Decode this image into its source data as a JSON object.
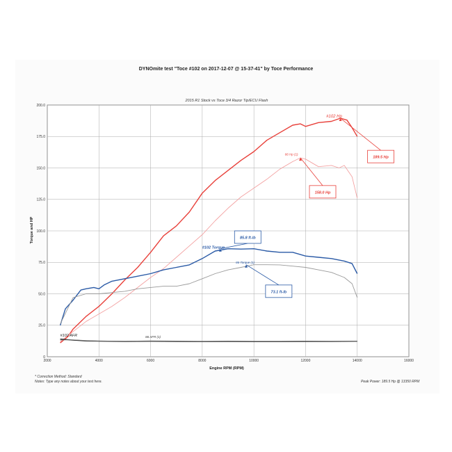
{
  "header": {
    "title": "DYNOmite test \"Toce  #102 on 2017-12-07 @ 15-37-41\" by Toce Performance"
  },
  "footer": {
    "correction": "* Correction Method: Standard",
    "notes": "Notes: Type any notes about your test here.",
    "peak_power": "Peak Power: 189.5 Hp @ 13350 RPM"
  },
  "chart_data": {
    "type": "line",
    "title": "2015 R1 Stock vs Toce 3/4 Razor Tip/ECU Flash",
    "xlabel": "Engine RPM (RPM)",
    "ylabel": "Torque and HP",
    "xlim": [
      2000,
      16000
    ],
    "ylim": [
      0,
      200
    ],
    "xticks": [
      "2000",
      "4000",
      "6000",
      "8000",
      "10000",
      "12000",
      "14000",
      "16000"
    ],
    "yticks": [
      "0",
      "25.0",
      "50.0",
      "75.0",
      "100.0",
      "125.0",
      "150.0",
      "175.0",
      "200.0"
    ],
    "grid": true,
    "series": [
      {
        "name": "#102 Hp",
        "color": "#e8403a",
        "width": 1.4,
        "x": [
          2500,
          2800,
          3000,
          3500,
          4000,
          4500,
          5000,
          5500,
          6000,
          6500,
          7000,
          7500,
          8000,
          8500,
          9000,
          9500,
          10000,
          10500,
          11000,
          11500,
          11800,
          12000,
          12500,
          13000,
          13350,
          13600,
          13800,
          14000
        ],
        "y": [
          11,
          16,
          22,
          32,
          40,
          50,
          61,
          71,
          83,
          96,
          104,
          115,
          130,
          140,
          148,
          156,
          163,
          172,
          178,
          184,
          185,
          183,
          186,
          187,
          189.5,
          188,
          182,
          175
        ]
      },
      {
        "name": "86 Hp (1)",
        "color": "#f3a2a2",
        "width": 0.9,
        "x": [
          2500,
          3000,
          3500,
          4000,
          4500,
          5000,
          5500,
          6000,
          6500,
          7000,
          7500,
          8000,
          8500,
          9000,
          9500,
          10000,
          10500,
          11000,
          11500,
          11800,
          12000,
          12500,
          13000,
          13300,
          13500,
          13800,
          14000
        ],
        "y": [
          12,
          20,
          28,
          34,
          40,
          47,
          55,
          63,
          70,
          79,
          88,
          97,
          108,
          118,
          127,
          134,
          141,
          149,
          155,
          158,
          157,
          151,
          152,
          150,
          152,
          143,
          126
        ]
      },
      {
        "name": "#102 Torque",
        "color": "#2a5aa6",
        "width": 1.4,
        "x": [
          2500,
          2700,
          3000,
          3300,
          3500,
          3800,
          4000,
          4200,
          4500,
          5000,
          5500,
          6000,
          6500,
          7000,
          7500,
          8000,
          8500,
          9000,
          9500,
          10000,
          10500,
          11000,
          11500,
          12000,
          12500,
          13000,
          13500,
          13800,
          14000
        ],
        "y": [
          25,
          38,
          45,
          53,
          54,
          55,
          54,
          57,
          60,
          62,
          64,
          66,
          69,
          71,
          73,
          78,
          84,
          85.8,
          85.5,
          85.8,
          84,
          83,
          83,
          80,
          79,
          78,
          76,
          74,
          66
        ]
      },
      {
        "name": "86 Torque (1)",
        "color": "#999999",
        "width": 0.9,
        "x": [
          2500,
          3000,
          3500,
          4000,
          4500,
          5000,
          5500,
          6000,
          6500,
          7000,
          7500,
          8000,
          8500,
          9000,
          9500,
          10000,
          10500,
          11000,
          11500,
          12000,
          12500,
          13000,
          13500,
          13800,
          14000
        ],
        "y": [
          26,
          47,
          50,
          50,
          51,
          52,
          54,
          55,
          56,
          56,
          58,
          62,
          66,
          69,
          71,
          73.1,
          73.1,
          73,
          72,
          71,
          69,
          67,
          63,
          58,
          47
        ]
      },
      {
        "name": "#102 AFR",
        "color": "#1c1c1c",
        "width": 1.4,
        "x": [
          2500,
          3000,
          3500,
          4000,
          5000,
          6000,
          7000,
          8000,
          9000,
          10000,
          11000,
          12000,
          13000,
          14000
        ],
        "y": [
          14,
          13.2,
          12.6,
          12.4,
          12.2,
          12.3,
          12.2,
          12.1,
          12.2,
          12.1,
          12.1,
          12.2,
          12.2,
          12.3
        ]
      },
      {
        "name": "86 AFR (1)",
        "color": "#888888",
        "width": 0.8,
        "x": [
          2500,
          3000,
          3500,
          4000,
          5000,
          6000,
          7000,
          8000,
          9000,
          10000,
          11000,
          12000,
          13000,
          14000
        ],
        "y": [
          13.2,
          13.5,
          12.9,
          12.5,
          12.4,
          12.6,
          12.5,
          12.3,
          12.5,
          12.4,
          12.4,
          12.5,
          12.4,
          12.4
        ]
      }
    ],
    "series_labels": [
      {
        "text": "#102 Hp",
        "x": 12800,
        "y": 190,
        "color": "#e8403a",
        "size": 6,
        "weight": "normal"
      },
      {
        "text": "86 Hp (1)",
        "x": 11200,
        "y": 160,
        "color": "#e8403a",
        "size": 4.5,
        "weight": "normal"
      },
      {
        "text": "#102 Torque",
        "x": 8000,
        "y": 86,
        "color": "#2a5aa6",
        "size": 5.5,
        "weight": "bold"
      },
      {
        "text": "86 Torque (1)",
        "x": 9300,
        "y": 74,
        "color": "#2a5aa6",
        "size": 4.5,
        "weight": "normal"
      },
      {
        "text": "#102 AFR",
        "x": 2500,
        "y": 16,
        "color": "#1c1c1c",
        "size": 5.5,
        "weight": "normal"
      },
      {
        "text": "86 AFR (1)",
        "x": 5800,
        "y": 15,
        "color": "#333333",
        "size": 4.5,
        "weight": "normal"
      }
    ],
    "callouts": [
      {
        "text": "189.5 Hp",
        "color": "#e8403a",
        "bx": 14400,
        "by": 164,
        "tx": 13350,
        "ty": 189.5
      },
      {
        "text": "158.0 Hp",
        "color": "#e8403a",
        "bx": 12150,
        "by": 136,
        "tx": 11800,
        "ty": 158
      },
      {
        "text": "85.8 ft-lb",
        "color": "#2a5aa6",
        "bx": 9250,
        "by": 100,
        "tx": 8700,
        "ty": 85.8
      },
      {
        "text": "73.1 ft-lb",
        "color": "#2a5aa6",
        "bx": 10450,
        "by": 57,
        "tx": 9700,
        "ty": 73.1
      }
    ]
  }
}
